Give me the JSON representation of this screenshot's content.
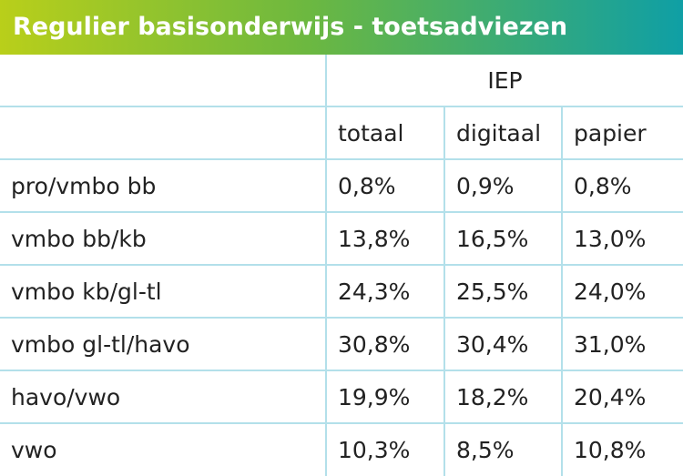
{
  "header": {
    "title": "Regulier basisonderwijs - toetsadviezen"
  },
  "table": {
    "group": "IEP",
    "columns": [
      "totaal",
      "digitaal",
      "papier"
    ],
    "rows": [
      [
        "pro/vmbo bb",
        "0,8%",
        "0,9%",
        "0,8%"
      ],
      [
        "vmbo bb/kb",
        "13,8%",
        "16,5%",
        "13,0%"
      ],
      [
        "vmbo kb/gl-tl",
        "24,3%",
        "25,5%",
        "24,0%"
      ],
      [
        "vmbo gl-tl/havo",
        "30,8%",
        "30,4%",
        "31,0%"
      ],
      [
        "havo/vwo",
        "19,9%",
        "18,2%",
        "20,4%"
      ],
      [
        "vwo",
        "10,3%",
        "8,5%",
        "10,8%"
      ]
    ]
  }
}
